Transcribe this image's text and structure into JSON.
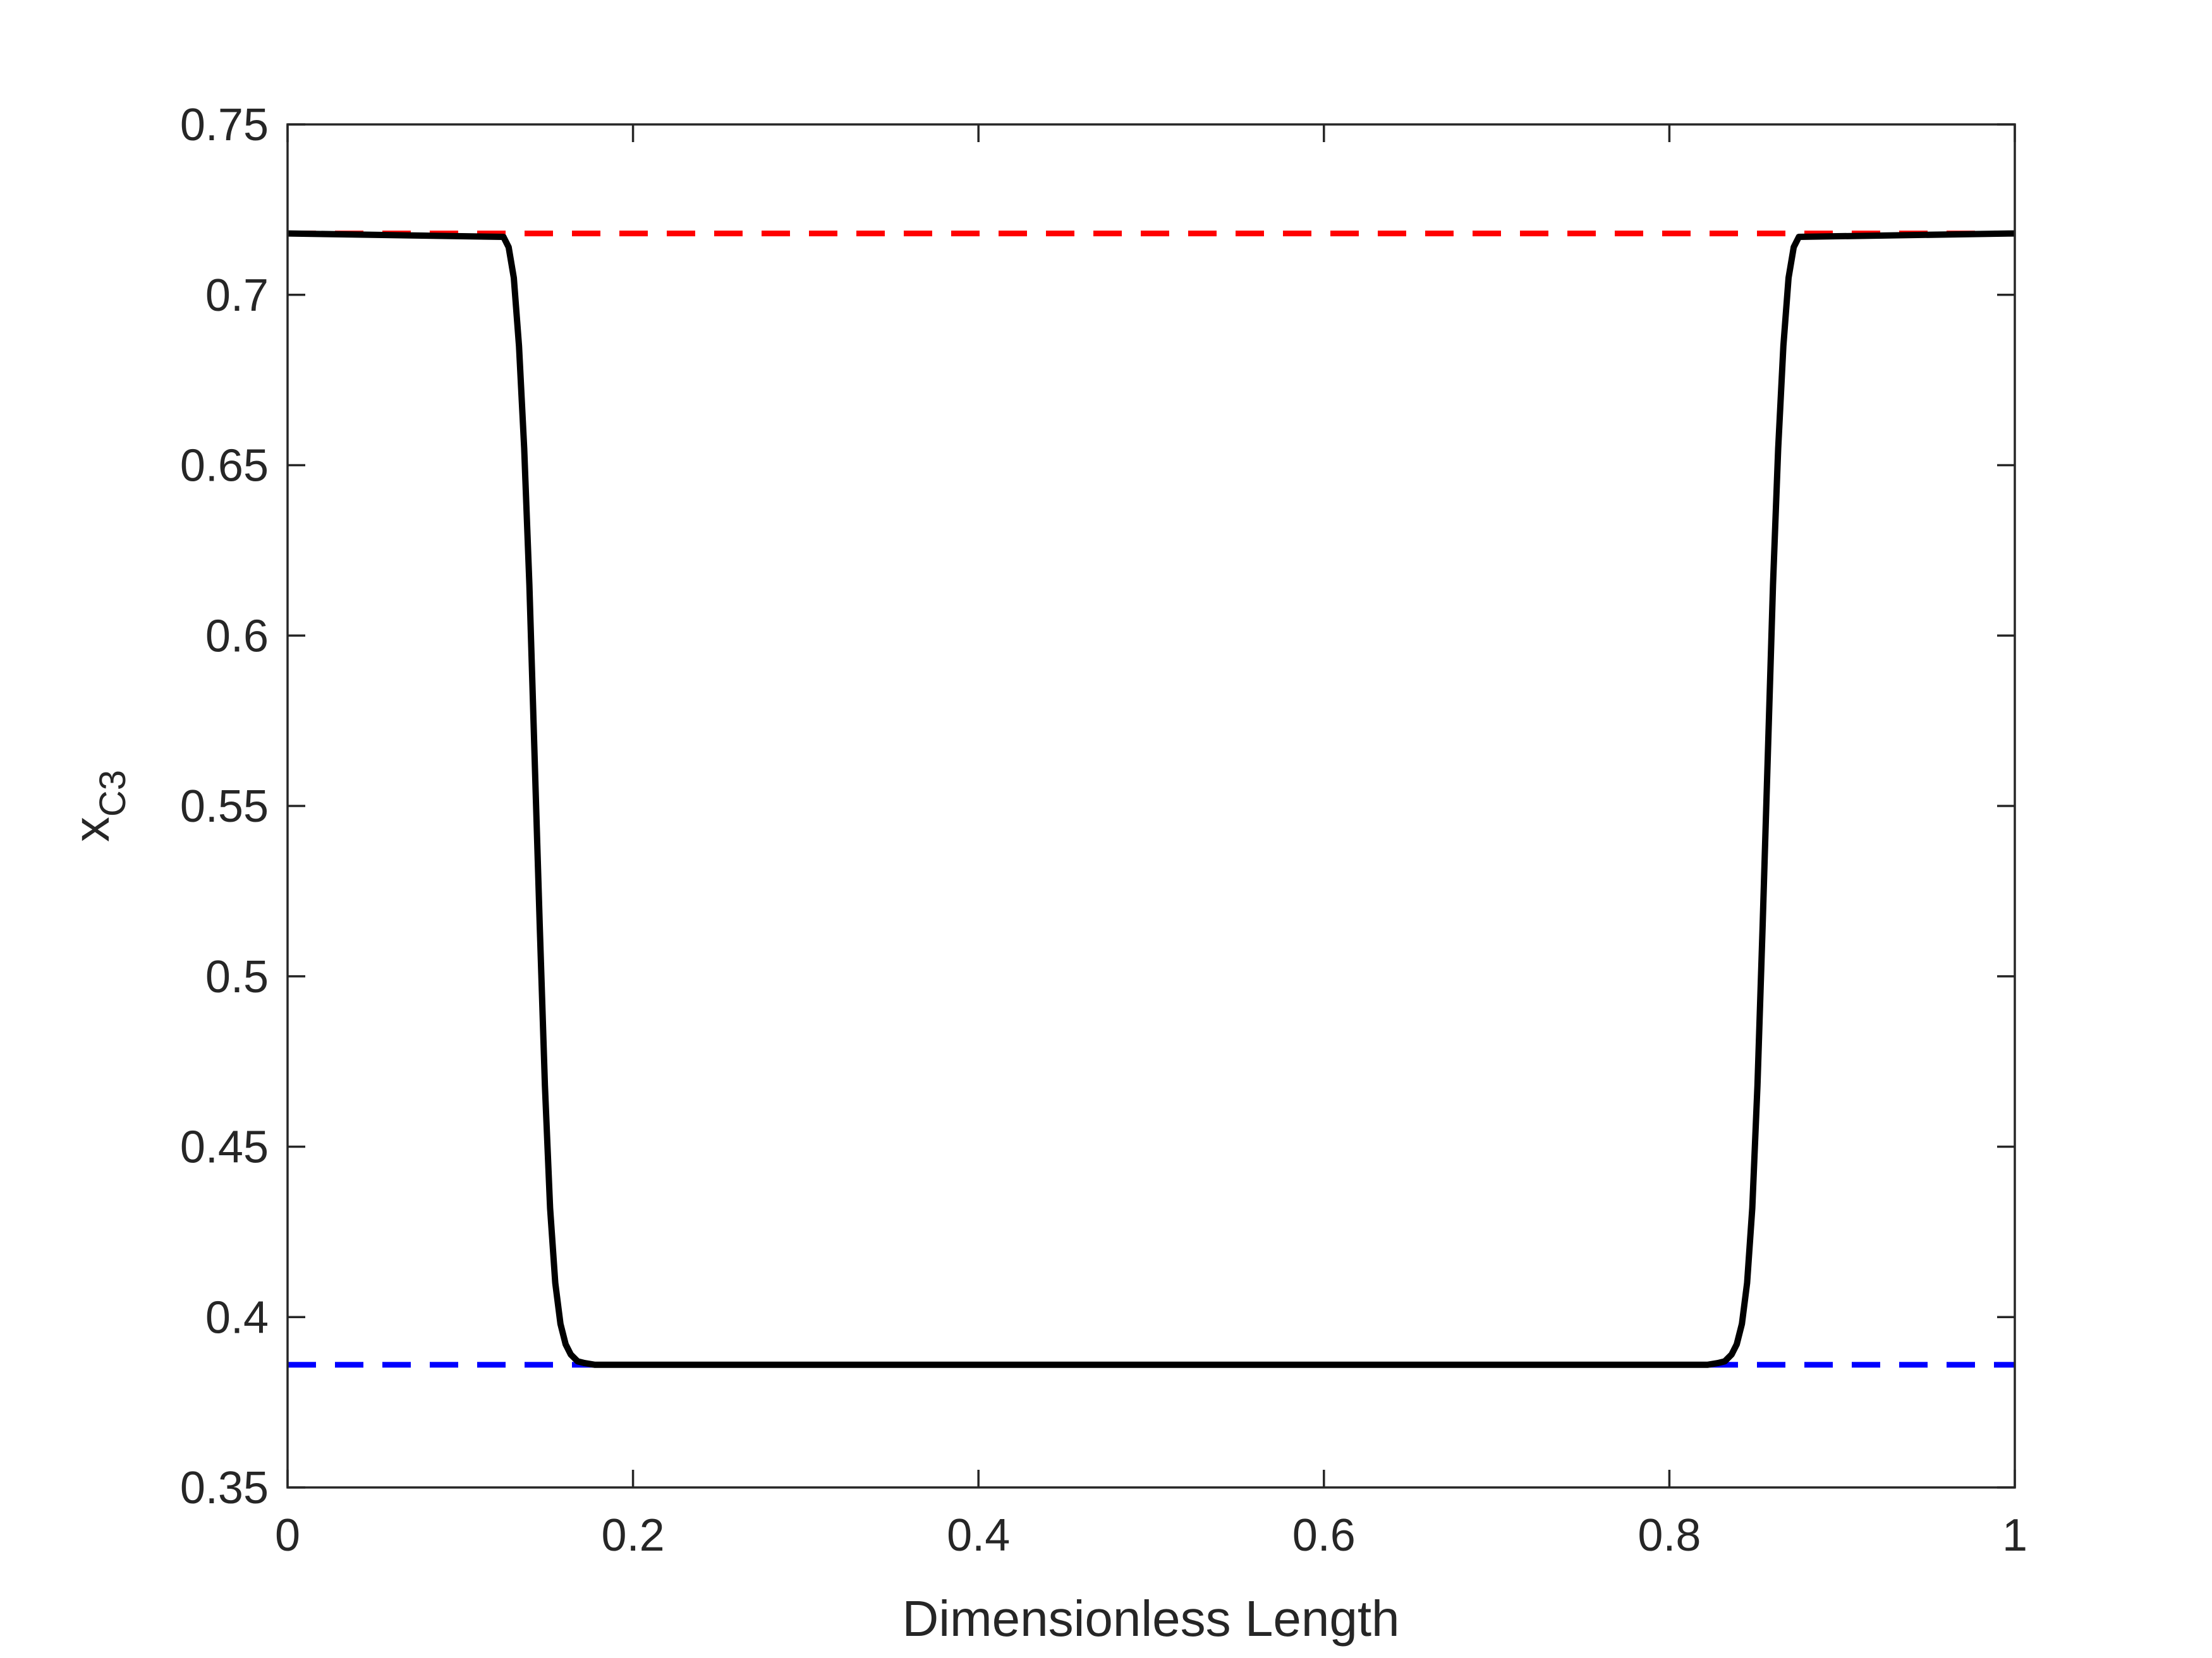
{
  "chart_data": {
    "type": "line",
    "title": "",
    "xlabel": "Dimensionless Length",
    "ylabel": {
      "main": "x",
      "subscript": "C3"
    },
    "xlim": [
      0,
      1
    ],
    "ylim": [
      0.35,
      0.75
    ],
    "x_ticks": [
      0,
      0.2,
      0.4,
      0.6,
      0.8,
      1
    ],
    "x_tick_labels": [
      "0",
      "0.2",
      "0.4",
      "0.6",
      "0.8",
      "1"
    ],
    "y_ticks": [
      0.35,
      0.4,
      0.45,
      0.5,
      0.55,
      0.6,
      0.65,
      0.7,
      0.75
    ],
    "y_tick_labels": [
      "0.35",
      "0.4",
      "0.45",
      "0.5",
      "0.55",
      "0.6",
      "0.65",
      "0.7",
      "0.75"
    ],
    "grid": false,
    "legend": "none",
    "series": [
      {
        "color": "#ff0000",
        "style": "dashed",
        "x": [
          0,
          1
        ],
        "y": [
          0.718,
          0.718
        ]
      },
      {
        "color": "#0000ff",
        "style": "dashed",
        "x": [
          0,
          1
        ],
        "y": [
          0.386,
          0.386
        ]
      },
      {
        "color": "#000000",
        "style": "solid",
        "x": [
          0,
          0.125,
          0.128,
          0.131,
          0.134,
          0.137,
          0.14,
          0.143,
          0.146,
          0.149,
          0.152,
          0.155,
          0.158,
          0.161,
          0.164,
          0.168,
          0.172,
          0.178,
          0.2,
          0.4,
          0.6,
          0.8,
          0.822,
          0.828,
          0.832,
          0.836,
          0.839,
          0.842,
          0.845,
          0.848,
          0.851,
          0.854,
          0.857,
          0.86,
          0.863,
          0.866,
          0.869,
          0.872,
          0.875,
          1
        ],
        "y": [
          0.718,
          0.717,
          0.714,
          0.705,
          0.685,
          0.655,
          0.615,
          0.565,
          0.515,
          0.468,
          0.432,
          0.41,
          0.398,
          0.392,
          0.389,
          0.387,
          0.3865,
          0.386,
          0.386,
          0.386,
          0.386,
          0.386,
          0.386,
          0.3865,
          0.387,
          0.389,
          0.392,
          0.398,
          0.41,
          0.432,
          0.468,
          0.515,
          0.565,
          0.615,
          0.655,
          0.685,
          0.705,
          0.714,
          0.717,
          0.718
        ]
      }
    ]
  }
}
